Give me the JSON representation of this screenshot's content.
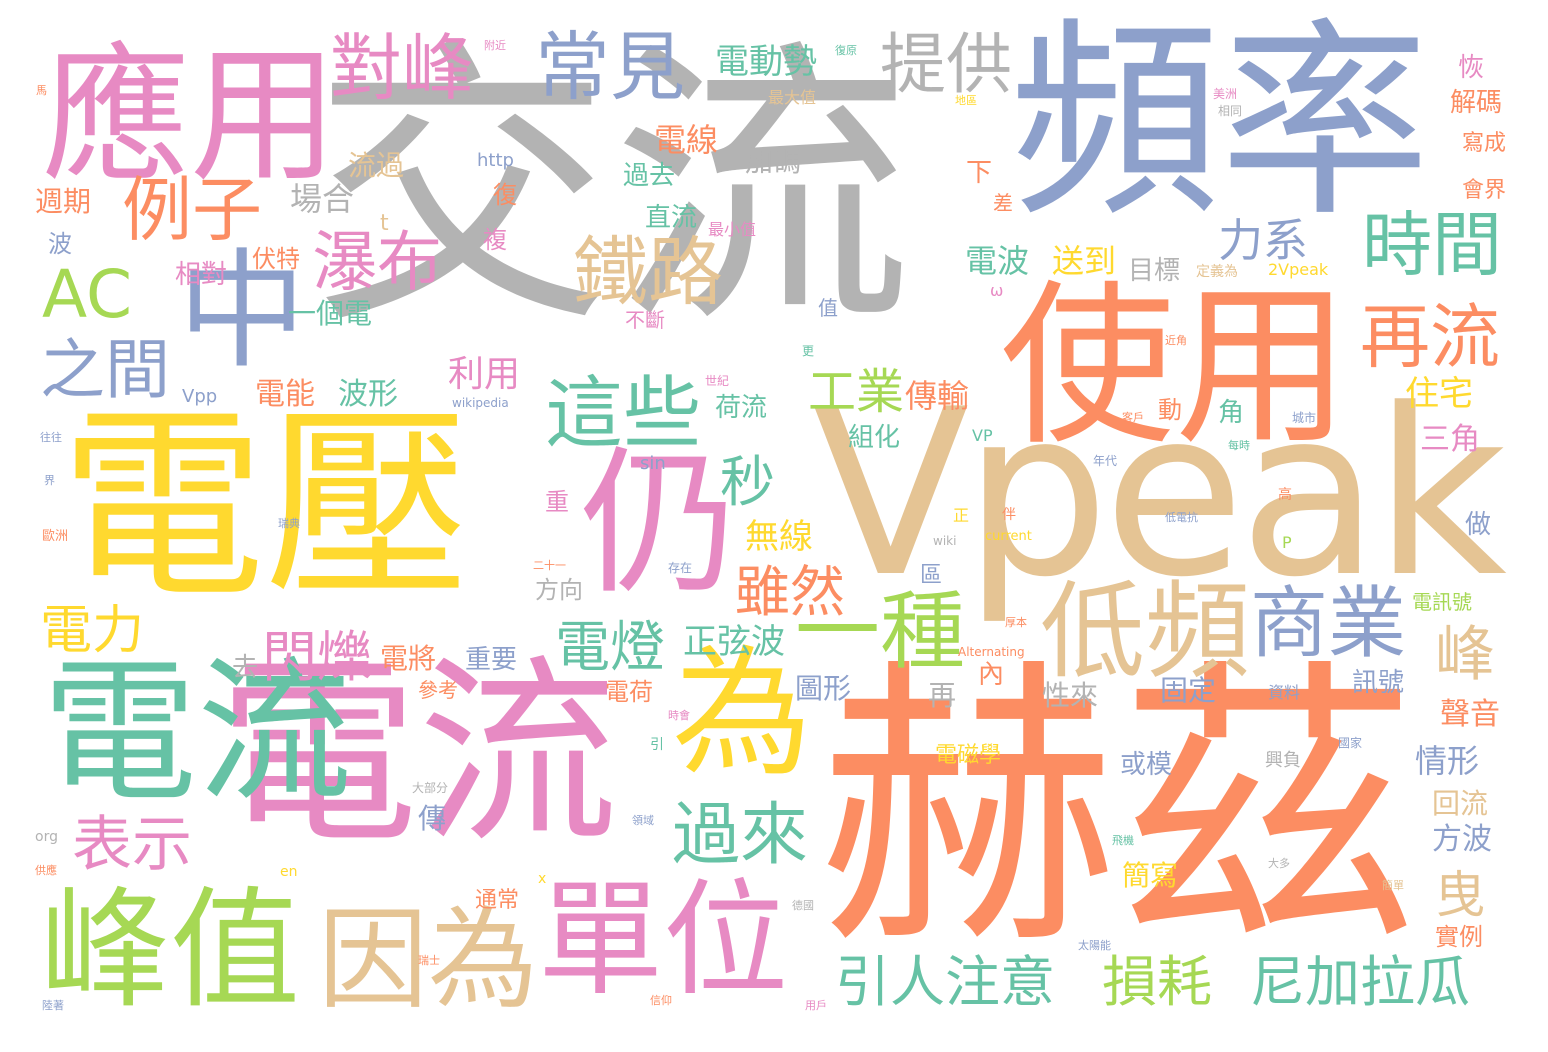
{
  "words": [
    {
      "text": "交流",
      "color": "#b3b3b3"
    },
    {
      "text": "赫茲",
      "color": "#fc8d62"
    },
    {
      "text": "Vpeak",
      "color": "#e5c494"
    },
    {
      "text": "電壓",
      "color": "#ffd92f"
    },
    {
      "text": "頻率",
      "color": "#8da0cb"
    },
    {
      "text": "電流",
      "color": "#e78ac3"
    },
    {
      "text": "電流",
      "color": "#66c2a5"
    },
    {
      "text": "使用",
      "color": "#fc8d62"
    },
    {
      "text": "應用",
      "color": "#e78ac3"
    },
    {
      "text": "中",
      "color": "#8da0cb"
    },
    {
      "text": "仍",
      "color": "#e78ac3"
    },
    {
      "text": "為",
      "color": "#ffd92f"
    },
    {
      "text": "峰值",
      "color": "#a6d854"
    },
    {
      "text": "因為",
      "color": "#e5c494"
    },
    {
      "text": "單位",
      "color": "#e78ac3"
    },
    {
      "text": "低頻",
      "color": "#e5c494"
    },
    {
      "text": "商業",
      "color": "#8da0cb"
    },
    {
      "text": "這些",
      "color": "#66c2a5"
    },
    {
      "text": "一種",
      "color": "#a6d854"
    },
    {
      "text": "AC",
      "color": "#a6d854"
    },
    {
      "text": "例子",
      "color": "#fc8d62"
    },
    {
      "text": "常見",
      "color": "#8da0cb"
    },
    {
      "text": "對峰",
      "color": "#e78ac3"
    },
    {
      "text": "提供",
      "color": "#b3b3b3"
    },
    {
      "text": "時間",
      "color": "#66c2a5"
    },
    {
      "text": "再流",
      "color": "#fc8d62"
    },
    {
      "text": "鐵路",
      "color": "#e5c494"
    },
    {
      "text": "瀑布",
      "color": "#e78ac3"
    },
    {
      "text": "之間",
      "color": "#8da0cb"
    },
    {
      "text": "表示",
      "color": "#e78ac3"
    },
    {
      "text": "過來",
      "color": "#66c2a5"
    },
    {
      "text": "引人注意",
      "color": "#66c2a5"
    },
    {
      "text": "損耗",
      "color": "#a6d854"
    },
    {
      "text": "尼加拉瓜",
      "color": "#66c2a5"
    },
    {
      "text": "雖然",
      "color": "#fc8d62"
    },
    {
      "text": "電燈",
      "color": "#66c2a5"
    },
    {
      "text": "閃爍",
      "color": "#e78ac3"
    },
    {
      "text": "電力",
      "color": "#ffd92f"
    },
    {
      "text": "秒",
      "color": "#66c2a5"
    },
    {
      "text": "工業",
      "color": "#a6d854"
    },
    {
      "text": "峰",
      "color": "#e5c494"
    },
    {
      "text": "曳",
      "color": "#e5c494"
    },
    {
      "text": "力系",
      "color": "#8da0cb"
    },
    {
      "text": "正弦波",
      "color": "#66c2a5"
    },
    {
      "text": "無線",
      "color": "#ffd92f"
    },
    {
      "text": "電動勢",
      "color": "#66c2a5"
    },
    {
      "text": "電線",
      "color": "#fc8d62"
    },
    {
      "text": "加碼",
      "color": "#b3b3b3"
    },
    {
      "text": "過去",
      "color": "#66c2a5"
    },
    {
      "text": "直流",
      "color": "#66c2a5"
    },
    {
      "text": "流過",
      "color": "#e5c494"
    },
    {
      "text": "場合",
      "color": "#b3b3b3"
    },
    {
      "text": "週期",
      "color": "#fc8d62"
    },
    {
      "text": "波",
      "color": "#8da0cb"
    },
    {
      "text": "伏特",
      "color": "#fc8d62"
    },
    {
      "text": "相對",
      "color": "#e78ac3"
    },
    {
      "text": "一個電",
      "color": "#66c2a5"
    },
    {
      "text": "電能",
      "color": "#fc8d62"
    },
    {
      "text": "波形",
      "color": "#66c2a5"
    },
    {
      "text": "利用",
      "color": "#e78ac3"
    },
    {
      "text": "電波",
      "color": "#66c2a5"
    },
    {
      "text": "送到",
      "color": "#ffd92f"
    },
    {
      "text": "目標",
      "color": "#b3b3b3"
    },
    {
      "text": "住宅",
      "color": "#ffd92f"
    },
    {
      "text": "傳輸",
      "color": "#fc8d62"
    },
    {
      "text": "荷流",
      "color": "#66c2a5"
    },
    {
      "text": "組化",
      "color": "#66c2a5"
    },
    {
      "text": "三角",
      "color": "#e78ac3"
    },
    {
      "text": "解碼",
      "color": "#fc8d62"
    },
    {
      "text": "恢",
      "color": "#e78ac3"
    },
    {
      "text": "寫成",
      "color": "#fc8d62"
    },
    {
      "text": "會界",
      "color": "#fc8d62"
    },
    {
      "text": "電將",
      "color": "#fc8d62"
    },
    {
      "text": "重要",
      "color": "#8da0cb"
    },
    {
      "text": "圖形",
      "color": "#8da0cb"
    },
    {
      "text": "電荷",
      "color": "#fc8d62"
    },
    {
      "text": "性來",
      "color": "#b3b3b3"
    },
    {
      "text": "固定",
      "color": "#8da0cb"
    },
    {
      "text": "訊號",
      "color": "#8da0cb"
    },
    {
      "text": "聲音",
      "color": "#fc8d62"
    },
    {
      "text": "情形",
      "color": "#8da0cb"
    },
    {
      "text": "回流",
      "color": "#e5c494"
    },
    {
      "text": "方波",
      "color": "#8da0cb"
    },
    {
      "text": "電磁學",
      "color": "#ffd92f"
    },
    {
      "text": "或模",
      "color": "#8da0cb"
    },
    {
      "text": "簡寫",
      "color": "#ffd92f"
    },
    {
      "text": "實例",
      "color": "#fc8d62"
    },
    {
      "text": "通常",
      "color": "#fc8d62"
    },
    {
      "text": "電訊號",
      "color": "#a6d854"
    },
    {
      "text": "方向",
      "color": "#b3b3b3"
    },
    {
      "text": "重",
      "color": "#e78ac3"
    },
    {
      "text": "傳",
      "color": "#8da0cb"
    },
    {
      "text": "參考",
      "color": "#fc8d62"
    },
    {
      "text": "去",
      "color": "#b3b3b3"
    },
    {
      "text": "再",
      "color": "#b3b3b3"
    },
    {
      "text": "內",
      "color": "#fc8d62"
    },
    {
      "text": "區",
      "color": "#8da0cb"
    },
    {
      "text": "做",
      "color": "#8da0cb"
    },
    {
      "text": "角",
      "color": "#66c2a5"
    },
    {
      "text": "動",
      "color": "#fc8d62"
    },
    {
      "text": "下",
      "color": "#fc8d62"
    },
    {
      "text": "差",
      "color": "#fc8d62"
    },
    {
      "text": "復",
      "color": "#fc8d62"
    },
    {
      "text": "複",
      "color": "#e78ac3"
    },
    {
      "text": "t",
      "color": "#e5c494"
    },
    {
      "text": "2Vpeak",
      "color": "#ffd92f"
    },
    {
      "text": "定義為",
      "color": "#e5c494"
    },
    {
      "text": "最小值",
      "color": "#e78ac3"
    },
    {
      "text": "最大值",
      "color": "#e5c494"
    },
    {
      "text": "不斷",
      "color": "#e78ac3"
    },
    {
      "text": "值",
      "color": "#8da0cb"
    },
    {
      "text": "Vpp",
      "color": "#8da0cb"
    },
    {
      "text": "VP",
      "color": "#66c2a5"
    },
    {
      "text": "sin",
      "color": "#8da0cb"
    },
    {
      "text": "wiki",
      "color": "#b3b3b3"
    },
    {
      "text": "current",
      "color": "#ffd92f"
    },
    {
      "text": "Alternating",
      "color": "#fc8d62"
    },
    {
      "text": "http",
      "color": "#8da0cb"
    },
    {
      "text": "wikipedia",
      "color": "#8da0cb"
    },
    {
      "text": "en",
      "color": "#ffd92f"
    },
    {
      "text": "org",
      "color": "#b3b3b3"
    },
    {
      "text": "ω",
      "color": "#e78ac3"
    },
    {
      "text": "P",
      "color": "#a6d854"
    },
    {
      "text": "x",
      "color": "#ffd92f"
    },
    {
      "text": "引",
      "color": "#66c2a5"
    },
    {
      "text": "正",
      "color": "#ffd92f"
    },
    {
      "text": "伴",
      "color": "#fc8d62"
    },
    {
      "text": "高",
      "color": "#fc8d62"
    },
    {
      "text": "更",
      "color": "#66c2a5"
    },
    {
      "text": "年代",
      "color": "#8da0cb"
    },
    {
      "text": "城市",
      "color": "#8da0cb"
    },
    {
      "text": "國家",
      "color": "#8da0cb"
    },
    {
      "text": "世紀",
      "color": "#e78ac3"
    },
    {
      "text": "相同",
      "color": "#b3b3b3"
    },
    {
      "text": "美洲",
      "color": "#e78ac3"
    },
    {
      "text": "歐洲",
      "color": "#fc8d62"
    },
    {
      "text": "瑞典",
      "color": "#8da0cb"
    },
    {
      "text": "瑞士",
      "color": "#fc8d62"
    },
    {
      "text": "德國",
      "color": "#b3b3b3"
    },
    {
      "text": "存在",
      "color": "#8da0cb"
    },
    {
      "text": "資料",
      "color": "#8da0cb"
    },
    {
      "text": "時會",
      "color": "#e78ac3"
    },
    {
      "text": "領域",
      "color": "#8da0cb"
    },
    {
      "text": "大部分",
      "color": "#b3b3b3"
    },
    {
      "text": "大多",
      "color": "#b3b3b3"
    },
    {
      "text": "用戶",
      "color": "#e78ac3"
    },
    {
      "text": "信仰",
      "color": "#fc8d62"
    },
    {
      "text": "供應",
      "color": "#fc8d62"
    },
    {
      "text": "陸著",
      "color": "#8da0cb"
    },
    {
      "text": "往往",
      "color": "#8da0cb"
    },
    {
      "text": "界",
      "color": "#8da0cb"
    },
    {
      "text": "馬",
      "color": "#fc8d62"
    },
    {
      "text": "附近",
      "color": "#e78ac3"
    },
    {
      "text": "復原",
      "color": "#66c2a5"
    },
    {
      "text": "地區",
      "color": "#ffd92f"
    },
    {
      "text": "近角",
      "color": "#fc8d62"
    },
    {
      "text": "客戶",
      "color": "#fc8d62"
    },
    {
      "text": "每時",
      "color": "#66c2a5"
    },
    {
      "text": "二十一",
      "color": "#fc8d62"
    },
    {
      "text": "低電抗",
      "color": "#8da0cb"
    },
    {
      "text": "厚本",
      "color": "#fc8d62"
    },
    {
      "text": "興負",
      "color": "#b3b3b3"
    },
    {
      "text": "飛機",
      "color": "#66c2a5"
    },
    {
      "text": "簡單",
      "color": "#e5c494"
    },
    {
      "text": "太陽能",
      "color": "#8da0cb"
    }
  ]
}
